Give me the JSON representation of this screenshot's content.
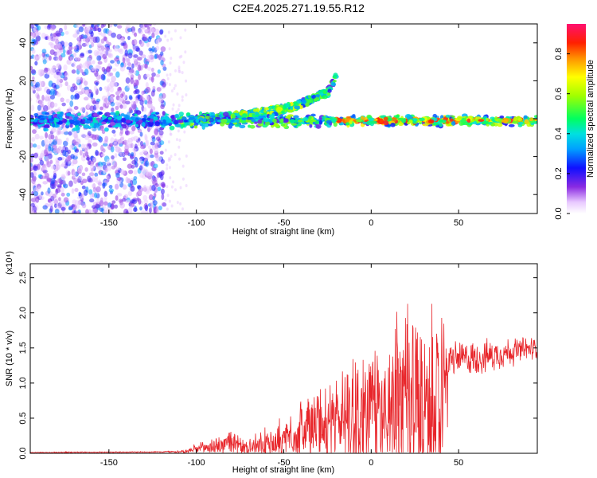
{
  "title": "C2E4.2025.271.19.55.R12",
  "chart_data": [
    {
      "type": "heatmap",
      "title": "C2E4.2025.271.19.55.R12",
      "xlabel": "Height of straight line (km)",
      "ylabel": "Frequency (Hz)",
      "xlim": [
        -195,
        95
      ],
      "ylim": [
        -50,
        50
      ],
      "x_ticks": [
        -150,
        -100,
        -50,
        0,
        50
      ],
      "y_ticks": [
        -40,
        -20,
        0,
        20,
        40
      ],
      "colorbar": {
        "label": "Normalized spectral amplitude",
        "range": [
          0,
          0.95
        ],
        "ticks": [
          0.0,
          0.2,
          0.4,
          0.6,
          0.8
        ]
      },
      "description_ridge": {
        "main_band_freq_hz": -1,
        "rising_branch": [
          {
            "height_km": -100,
            "freq_hz": 0
          },
          {
            "height_km": -70,
            "freq_hz": 2
          },
          {
            "height_km": -45,
            "freq_hz": 6
          },
          {
            "height_km": -25,
            "freq_hz": 14
          },
          {
            "height_km": -18,
            "freq_hz": 25
          }
        ]
      }
    },
    {
      "type": "line",
      "xlabel": "Height of straight line (km)",
      "ylabel": "SNR (10 * v/v)",
      "y_exponent": "(x10⁴)",
      "xlim": [
        -195,
        95
      ],
      "ylim": [
        0,
        2.7
      ],
      "x_ticks": [
        -150,
        -100,
        -50,
        0,
        50
      ],
      "y_ticks": [
        0.0,
        0.5,
        1.0,
        1.5,
        2.0,
        2.5
      ],
      "y_tick_labels": [
        "0.0",
        "0.5",
        "1.0",
        "1.5",
        "2.0",
        "2.5"
      ],
      "color": "#e8262b",
      "envelope": [
        {
          "x": -195,
          "base": 0.01,
          "amp": 0.01
        },
        {
          "x": -120,
          "base": 0.02,
          "amp": 0.01
        },
        {
          "x": -105,
          "base": 0.03,
          "amp": 0.04
        },
        {
          "x": -95,
          "base": 0.08,
          "amp": 0.15
        },
        {
          "x": -80,
          "base": 0.15,
          "amp": 0.25
        },
        {
          "x": -72,
          "base": 0.08,
          "amp": 0.1
        },
        {
          "x": -60,
          "base": 0.12,
          "amp": 0.3
        },
        {
          "x": -50,
          "base": 0.2,
          "amp": 0.45
        },
        {
          "x": -40,
          "base": 0.35,
          "amp": 0.6
        },
        {
          "x": -20,
          "base": 0.45,
          "amp": 0.8
        },
        {
          "x": -10,
          "base": 0.55,
          "amp": 1.3
        },
        {
          "x": 0,
          "base": 0.6,
          "amp": 1.1
        },
        {
          "x": 15,
          "base": 0.8,
          "amp": 1.5
        },
        {
          "x": 30,
          "base": 0.7,
          "amp": 1.9
        },
        {
          "x": 40,
          "base": 0.5,
          "amp": 1.6
        },
        {
          "x": 45,
          "base": 1.35,
          "amp": 0.3
        },
        {
          "x": 60,
          "base": 1.35,
          "amp": 0.3
        },
        {
          "x": 80,
          "base": 1.45,
          "amp": 0.25
        },
        {
          "x": 95,
          "base": 1.5,
          "amp": 0.2
        }
      ]
    }
  ]
}
